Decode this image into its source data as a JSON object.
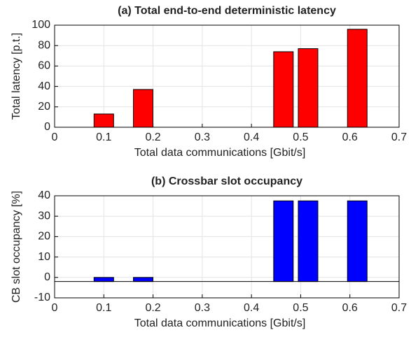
{
  "chart_data": [
    {
      "type": "bar",
      "title": "(a) Total end-to-end deterministic latency",
      "xlabel": "Total data communications [Gbit/s]",
      "ylabel": "Total latency [p.t.]",
      "x": [
        0.1,
        0.18,
        0.465,
        0.515,
        0.615
      ],
      "values": [
        13,
        37,
        74,
        77,
        96
      ],
      "color": "#ff0000",
      "xlim": [
        0,
        0.7
      ],
      "ylim": [
        0,
        100
      ],
      "xticks": [
        0,
        0.1,
        0.2,
        0.3,
        0.4,
        0.5,
        0.6,
        0.7
      ],
      "yticks": [
        0,
        20,
        40,
        60,
        80,
        100
      ],
      "grid": true,
      "baseline": 0
    },
    {
      "type": "bar",
      "title": "(b) Crossbar slot occupancy",
      "xlabel": "Total data communications [Gbit/s]",
      "ylabel": "CB slot occupancy [%]",
      "x": [
        0.1,
        0.18,
        0.465,
        0.515,
        0.615
      ],
      "values": [
        0,
        0,
        37.5,
        37.5,
        37.5
      ],
      "color": "#0000ff",
      "xlim": [
        0,
        0.7
      ],
      "ylim": [
        -10,
        40
      ],
      "xticks": [
        0,
        0.1,
        0.2,
        0.3,
        0.4,
        0.5,
        0.6,
        0.7
      ],
      "yticks": [
        -10,
        0,
        10,
        20,
        30,
        40
      ],
      "grid": true,
      "baseline": -2
    }
  ]
}
